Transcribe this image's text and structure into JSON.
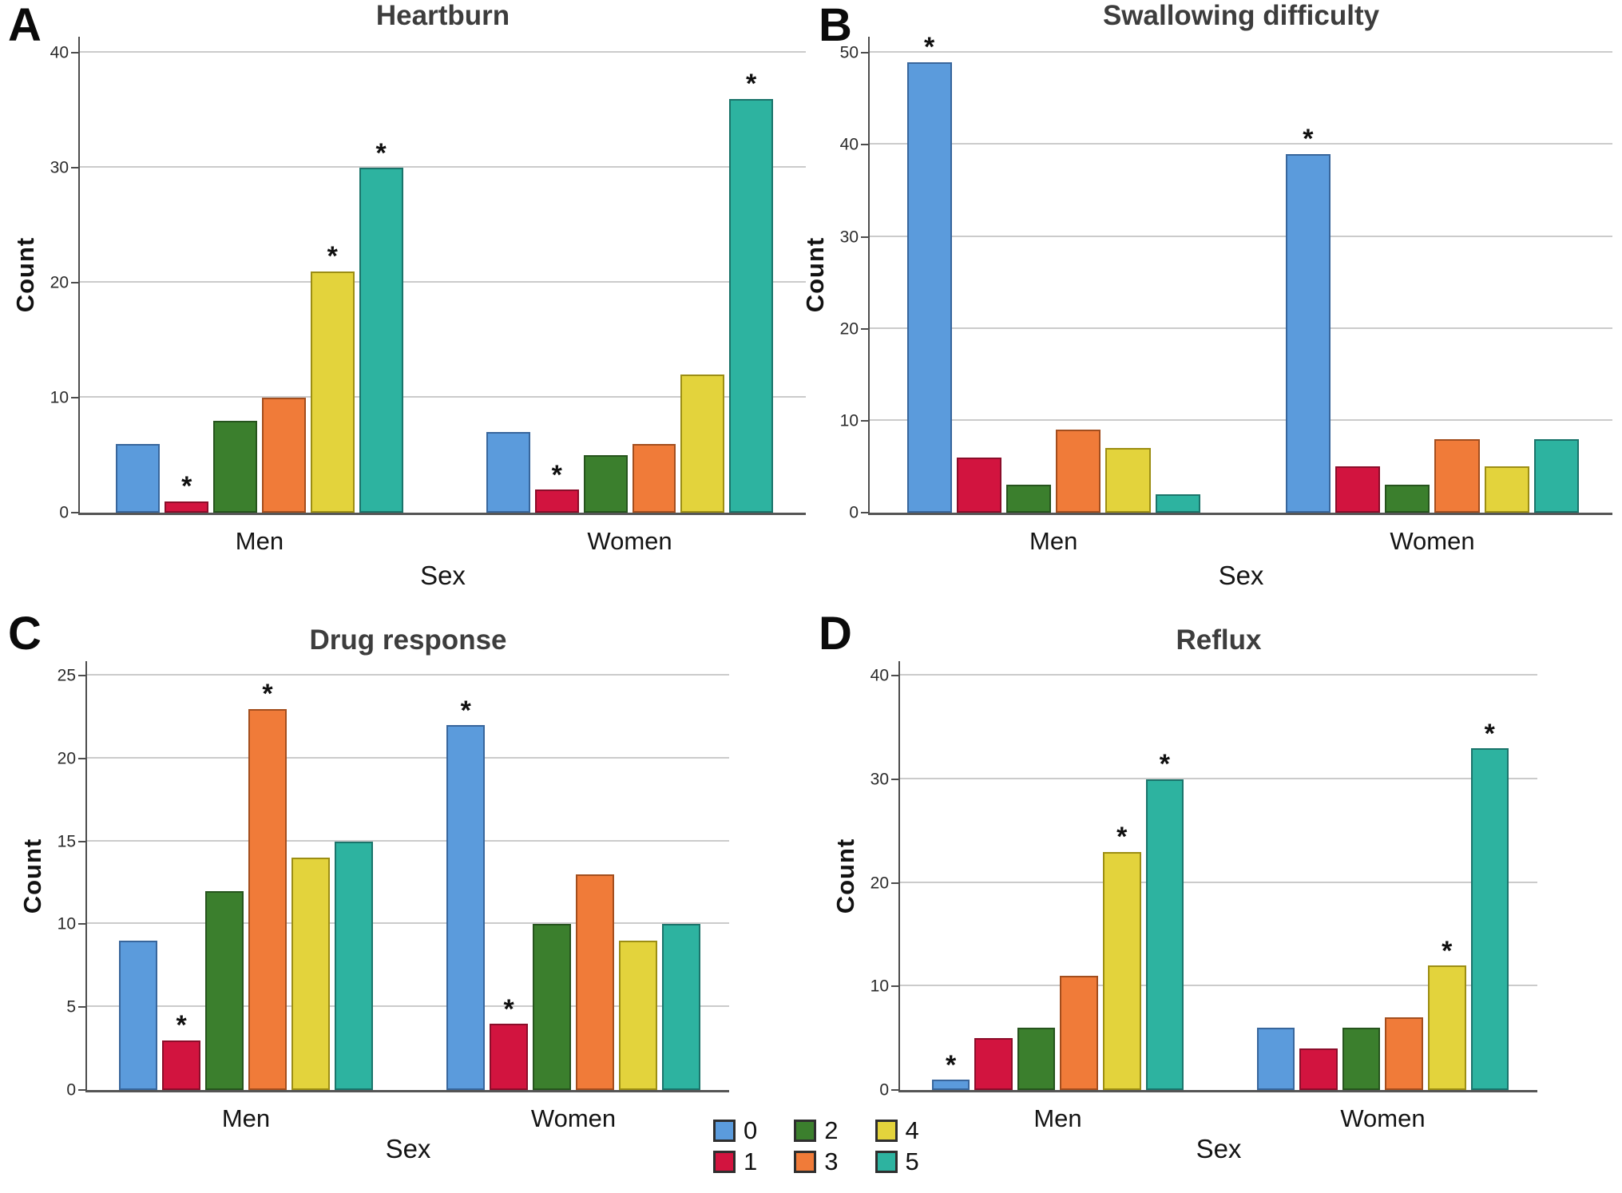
{
  "annotation_symbol": "*",
  "legend": {
    "columns": 3,
    "items": [
      {
        "label": "0",
        "color": "#5B9BDC",
        "border": "#38669C"
      },
      {
        "label": "1",
        "color": "#D2143F",
        "border": "#8C0D2A"
      },
      {
        "label": "2",
        "color": "#3B7F2D",
        "border": "#26541D"
      },
      {
        "label": "3",
        "color": "#F07B39",
        "border": "#A34E1E"
      },
      {
        "label": "4",
        "color": "#E3D33C",
        "border": "#9C8E14"
      },
      {
        "label": "5",
        "color": "#2DB3A0",
        "border": "#1B746B"
      }
    ]
  },
  "chart_data": [
    {
      "type": "bar",
      "panel_letter": "A",
      "title": "Heartburn",
      "xlabel": "Sex",
      "ylabel": "Count",
      "ylim": [
        0,
        40
      ],
      "yticks": [
        0,
        10,
        20,
        30,
        40
      ],
      "grid": true,
      "legend_position": "shared-bottom",
      "categories": [
        "Men",
        "Women"
      ],
      "series": [
        {
          "name": "0",
          "values": [
            6,
            7
          ],
          "starred": [
            false,
            false
          ]
        },
        {
          "name": "1",
          "values": [
            1,
            2
          ],
          "starred": [
            true,
            true
          ]
        },
        {
          "name": "2",
          "values": [
            8,
            5
          ],
          "starred": [
            false,
            false
          ]
        },
        {
          "name": "3",
          "values": [
            10,
            6
          ],
          "starred": [
            false,
            false
          ]
        },
        {
          "name": "4",
          "values": [
            21,
            12
          ],
          "starred": [
            true,
            false
          ]
        },
        {
          "name": "5",
          "values": [
            30,
            36
          ],
          "starred": [
            true,
            true
          ]
        }
      ]
    },
    {
      "type": "bar",
      "panel_letter": "B",
      "title": "Swallowing difficulty",
      "xlabel": "Sex",
      "ylabel": "Count",
      "ylim": [
        0,
        50
      ],
      "yticks": [
        0,
        10,
        20,
        30,
        40,
        50
      ],
      "grid": true,
      "legend_position": "shared-bottom",
      "categories": [
        "Men",
        "Women"
      ],
      "series": [
        {
          "name": "0",
          "values": [
            49,
            39
          ],
          "starred": [
            true,
            true
          ]
        },
        {
          "name": "1",
          "values": [
            6,
            5
          ],
          "starred": [
            false,
            false
          ]
        },
        {
          "name": "2",
          "values": [
            3,
            3
          ],
          "starred": [
            false,
            false
          ]
        },
        {
          "name": "3",
          "values": [
            9,
            8
          ],
          "starred": [
            false,
            false
          ]
        },
        {
          "name": "4",
          "values": [
            7,
            5
          ],
          "starred": [
            false,
            false
          ]
        },
        {
          "name": "5",
          "values": [
            2,
            8
          ],
          "starred": [
            false,
            false
          ]
        }
      ]
    },
    {
      "type": "bar",
      "panel_letter": "C",
      "title": "Drug response",
      "xlabel": "Sex",
      "ylabel": "Count",
      "ylim": [
        0,
        25
      ],
      "yticks": [
        0,
        5,
        10,
        15,
        20,
        25
      ],
      "grid": true,
      "legend_position": "shared-bottom",
      "categories": [
        "Men",
        "Women"
      ],
      "series": [
        {
          "name": "0",
          "values": [
            9,
            22
          ],
          "starred": [
            false,
            true
          ]
        },
        {
          "name": "1",
          "values": [
            3,
            4
          ],
          "starred": [
            true,
            true
          ]
        },
        {
          "name": "2",
          "values": [
            12,
            10
          ],
          "starred": [
            false,
            false
          ]
        },
        {
          "name": "3",
          "values": [
            23,
            13
          ],
          "starred": [
            true,
            false
          ]
        },
        {
          "name": "4",
          "values": [
            14,
            9
          ],
          "starred": [
            false,
            false
          ]
        },
        {
          "name": "5",
          "values": [
            15,
            10
          ],
          "starred": [
            false,
            false
          ]
        }
      ]
    },
    {
      "type": "bar",
      "panel_letter": "D",
      "title": "Reflux",
      "xlabel": "Sex",
      "ylabel": "Count",
      "ylim": [
        0,
        40
      ],
      "yticks": [
        0,
        10,
        20,
        30,
        40
      ],
      "grid": true,
      "legend_position": "shared-bottom",
      "categories": [
        "Men",
        "Women"
      ],
      "series": [
        {
          "name": "0",
          "values": [
            1,
            6
          ],
          "starred": [
            true,
            false
          ]
        },
        {
          "name": "1",
          "values": [
            5,
            4
          ],
          "starred": [
            false,
            false
          ]
        },
        {
          "name": "2",
          "values": [
            6,
            6
          ],
          "starred": [
            false,
            false
          ]
        },
        {
          "name": "3",
          "values": [
            11,
            7
          ],
          "starred": [
            false,
            false
          ]
        },
        {
          "name": "4",
          "values": [
            23,
            12
          ],
          "starred": [
            true,
            true
          ]
        },
        {
          "name": "5",
          "values": [
            30,
            33
          ],
          "starred": [
            true,
            true
          ]
        }
      ]
    }
  ]
}
